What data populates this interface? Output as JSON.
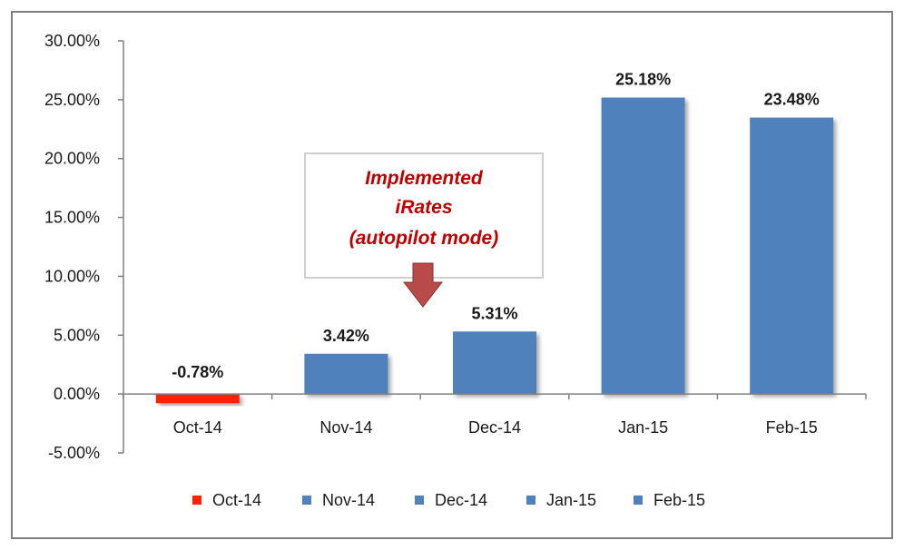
{
  "chart_data": {
    "type": "bar",
    "categories": [
      "Oct-14",
      "Nov-14",
      "Dec-14",
      "Jan-15",
      "Feb-15"
    ],
    "values": [
      -0.78,
      3.42,
      5.31,
      25.18,
      23.48
    ],
    "data_labels": [
      "-0.78%",
      "3.42%",
      "5.31%",
      "25.18%",
      "23.48%"
    ],
    "colors": [
      "#ff2200",
      "#4f81bd",
      "#4f81bd",
      "#4f81bd",
      "#4f81bd"
    ],
    "ylim": [
      -5,
      30
    ],
    "ytick_values": [
      30,
      25,
      20,
      15,
      10,
      5,
      0,
      -5
    ],
    "ytick_labels": [
      "30.00%",
      "25.00%",
      "20.00%",
      "15.00%",
      "10.00%",
      "5.00%",
      "0.00%",
      "-5.00%"
    ],
    "grid": false,
    "legend": {
      "placement": "bottom",
      "entries": [
        "Oct-14",
        "Nov-14",
        "Dec-14",
        "Jan-15",
        "Feb-15"
      ]
    },
    "annotation": {
      "lines": [
        "Implemented",
        "iRates",
        "(autopilot  mode)"
      ],
      "color": "#c00000",
      "arrow_color": "#b94a4a"
    }
  }
}
